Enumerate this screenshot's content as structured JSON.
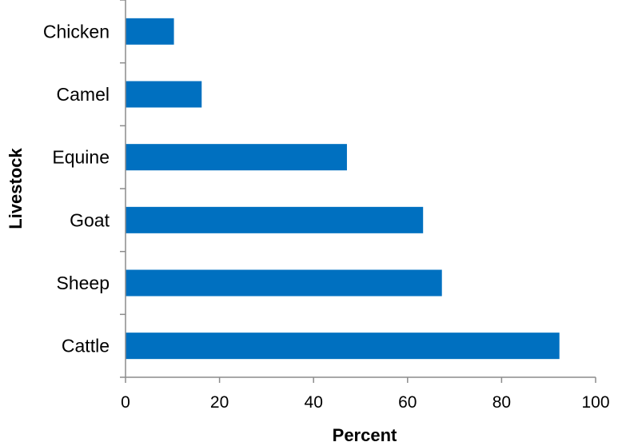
{
  "chart_data": {
    "type": "bar",
    "orientation": "horizontal",
    "categories": [
      "Chicken",
      "Camel",
      "Equine",
      "Goat",
      "Sheep",
      "Cattle"
    ],
    "values": [
      10.3,
      16.2,
      47.1,
      63.3,
      67.3,
      92.3
    ],
    "xlabel": "Percent",
    "ylabel": "Livestock",
    "xlim": [
      0,
      100
    ],
    "xticks": [
      0,
      20,
      40,
      60,
      80,
      100
    ],
    "grid": false,
    "legend": "none",
    "bar_color": "#0070c0"
  }
}
